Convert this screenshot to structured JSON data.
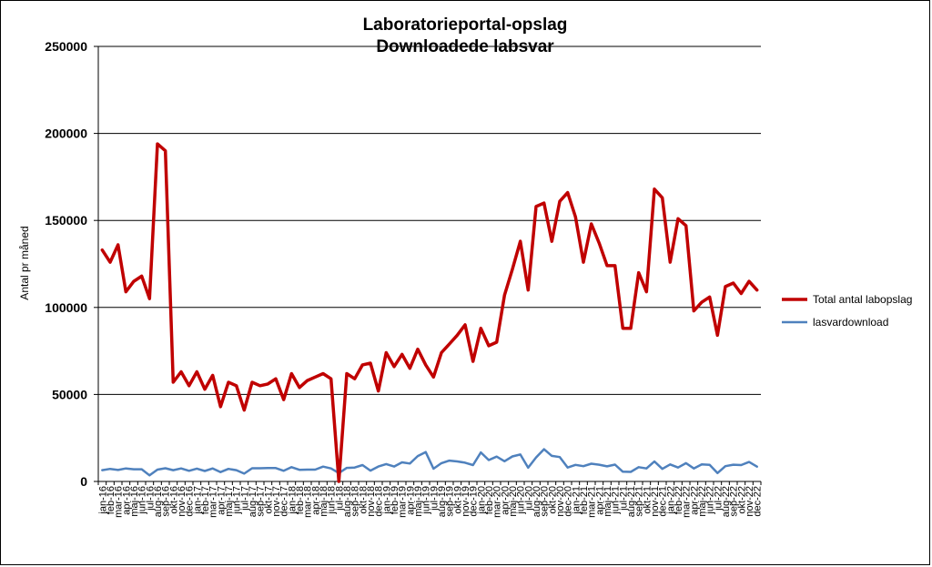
{
  "chart_data": {
    "type": "line",
    "title": [
      "Laboratorieportal-opslag",
      "Downloadede labsvar"
    ],
    "ylabel": "Antal pr måned",
    "xlabel": "",
    "ylim": [
      0,
      250000
    ],
    "yticks": [
      0,
      50000,
      100000,
      150000,
      200000,
      250000
    ],
    "grid": true,
    "legend_position": "right",
    "categories": [
      "jan-16",
      "feb-16",
      "mar-16",
      "apr-16",
      "maj-16",
      "jun-16",
      "jul-16",
      "aug-16",
      "sep-16",
      "okt-16",
      "nov-16",
      "dec-16",
      "jan-17",
      "feb-17",
      "mar-17",
      "apr-17",
      "maj-17",
      "jun-17",
      "jul-17",
      "aug-17",
      "sep-17",
      "okt-17",
      "nov-17",
      "dec-17",
      "jan-18",
      "feb-18",
      "mar-18",
      "apr-18",
      "maj-18",
      "jun-18",
      "jul-18",
      "aug-18",
      "sep-18",
      "okt-18",
      "nov-18",
      "dec-18",
      "jan-19",
      "feb-19",
      "mar-19",
      "apr-19",
      "maj-19",
      "jun-19",
      "jul-19",
      "aug-19",
      "sep-19",
      "okt-19",
      "nov-19",
      "dec-19",
      "jan-20",
      "feb-20",
      "mar-20",
      "apr-20",
      "maj-20",
      "jun-20",
      "jul-20",
      "aug-20",
      "sep-20",
      "okt-20",
      "nov-20",
      "dec-20",
      "jan-21",
      "feb-21",
      "mar-21",
      "apr-21",
      "maj-21",
      "jun-21",
      "jul-21",
      "aug-21",
      "sep-21",
      "okt-21",
      "nov-21",
      "dec-21",
      "jan-22",
      "feb-22",
      "mar-22",
      "apr-22",
      "maj-22",
      "jun-22",
      "jul-22",
      "aug-22",
      "sep-22",
      "okt-22",
      "nov-22",
      "dec-22"
    ],
    "series": [
      {
        "name": "Total antal labopslag",
        "color": "#C00000",
        "values": [
          133000,
          126000,
          136000,
          109000,
          115000,
          118000,
          105000,
          194000,
          190000,
          57000,
          63000,
          55000,
          63000,
          53000,
          61000,
          43000,
          57000,
          55000,
          41000,
          57000,
          55000,
          56000,
          59000,
          47000,
          62000,
          54000,
          58000,
          60000,
          62000,
          59000,
          0,
          62000,
          59000,
          67000,
          68000,
          52000,
          74000,
          66000,
          73000,
          65000,
          76000,
          67000,
          60000,
          74000,
          79000,
          84000,
          90000,
          69000,
          88000,
          78000,
          80000,
          107000,
          122000,
          138000,
          110000,
          158000,
          160000,
          138000,
          161000,
          166000,
          152000,
          126000,
          148000,
          137000,
          124000,
          124000,
          88000,
          88000,
          120000,
          109000,
          168000,
          163000,
          126000,
          151000,
          147000,
          98000,
          103000,
          106000,
          84000,
          112000,
          114000,
          108000,
          115000,
          110000
        ]
      },
      {
        "name": "lasvardownload",
        "color": "#4F81BD",
        "values": [
          6500,
          7200,
          6600,
          7500,
          7000,
          7000,
          3500,
          6800,
          7600,
          6500,
          7500,
          6100,
          7400,
          6000,
          7500,
          5400,
          7200,
          6500,
          4500,
          7600,
          7600,
          7700,
          7700,
          6100,
          8200,
          6700,
          6800,
          6800,
          8500,
          7500,
          4800,
          7800,
          8000,
          9400,
          6200,
          8600,
          10000,
          8600,
          11000,
          10300,
          14600,
          16900,
          7300,
          10500,
          12000,
          11500,
          10800,
          9400,
          16700,
          12300,
          14300,
          11600,
          14400,
          15500,
          7900,
          13800,
          18500,
          14700,
          14000,
          8000,
          9500,
          8800,
          10200,
          9600,
          8700,
          9700,
          5600,
          5500,
          8200,
          7500,
          11500,
          7200,
          9800,
          8000,
          10500,
          7500,
          9800,
          9500,
          4800,
          8800,
          9600,
          9400,
          11200,
          8500
        ]
      }
    ]
  }
}
